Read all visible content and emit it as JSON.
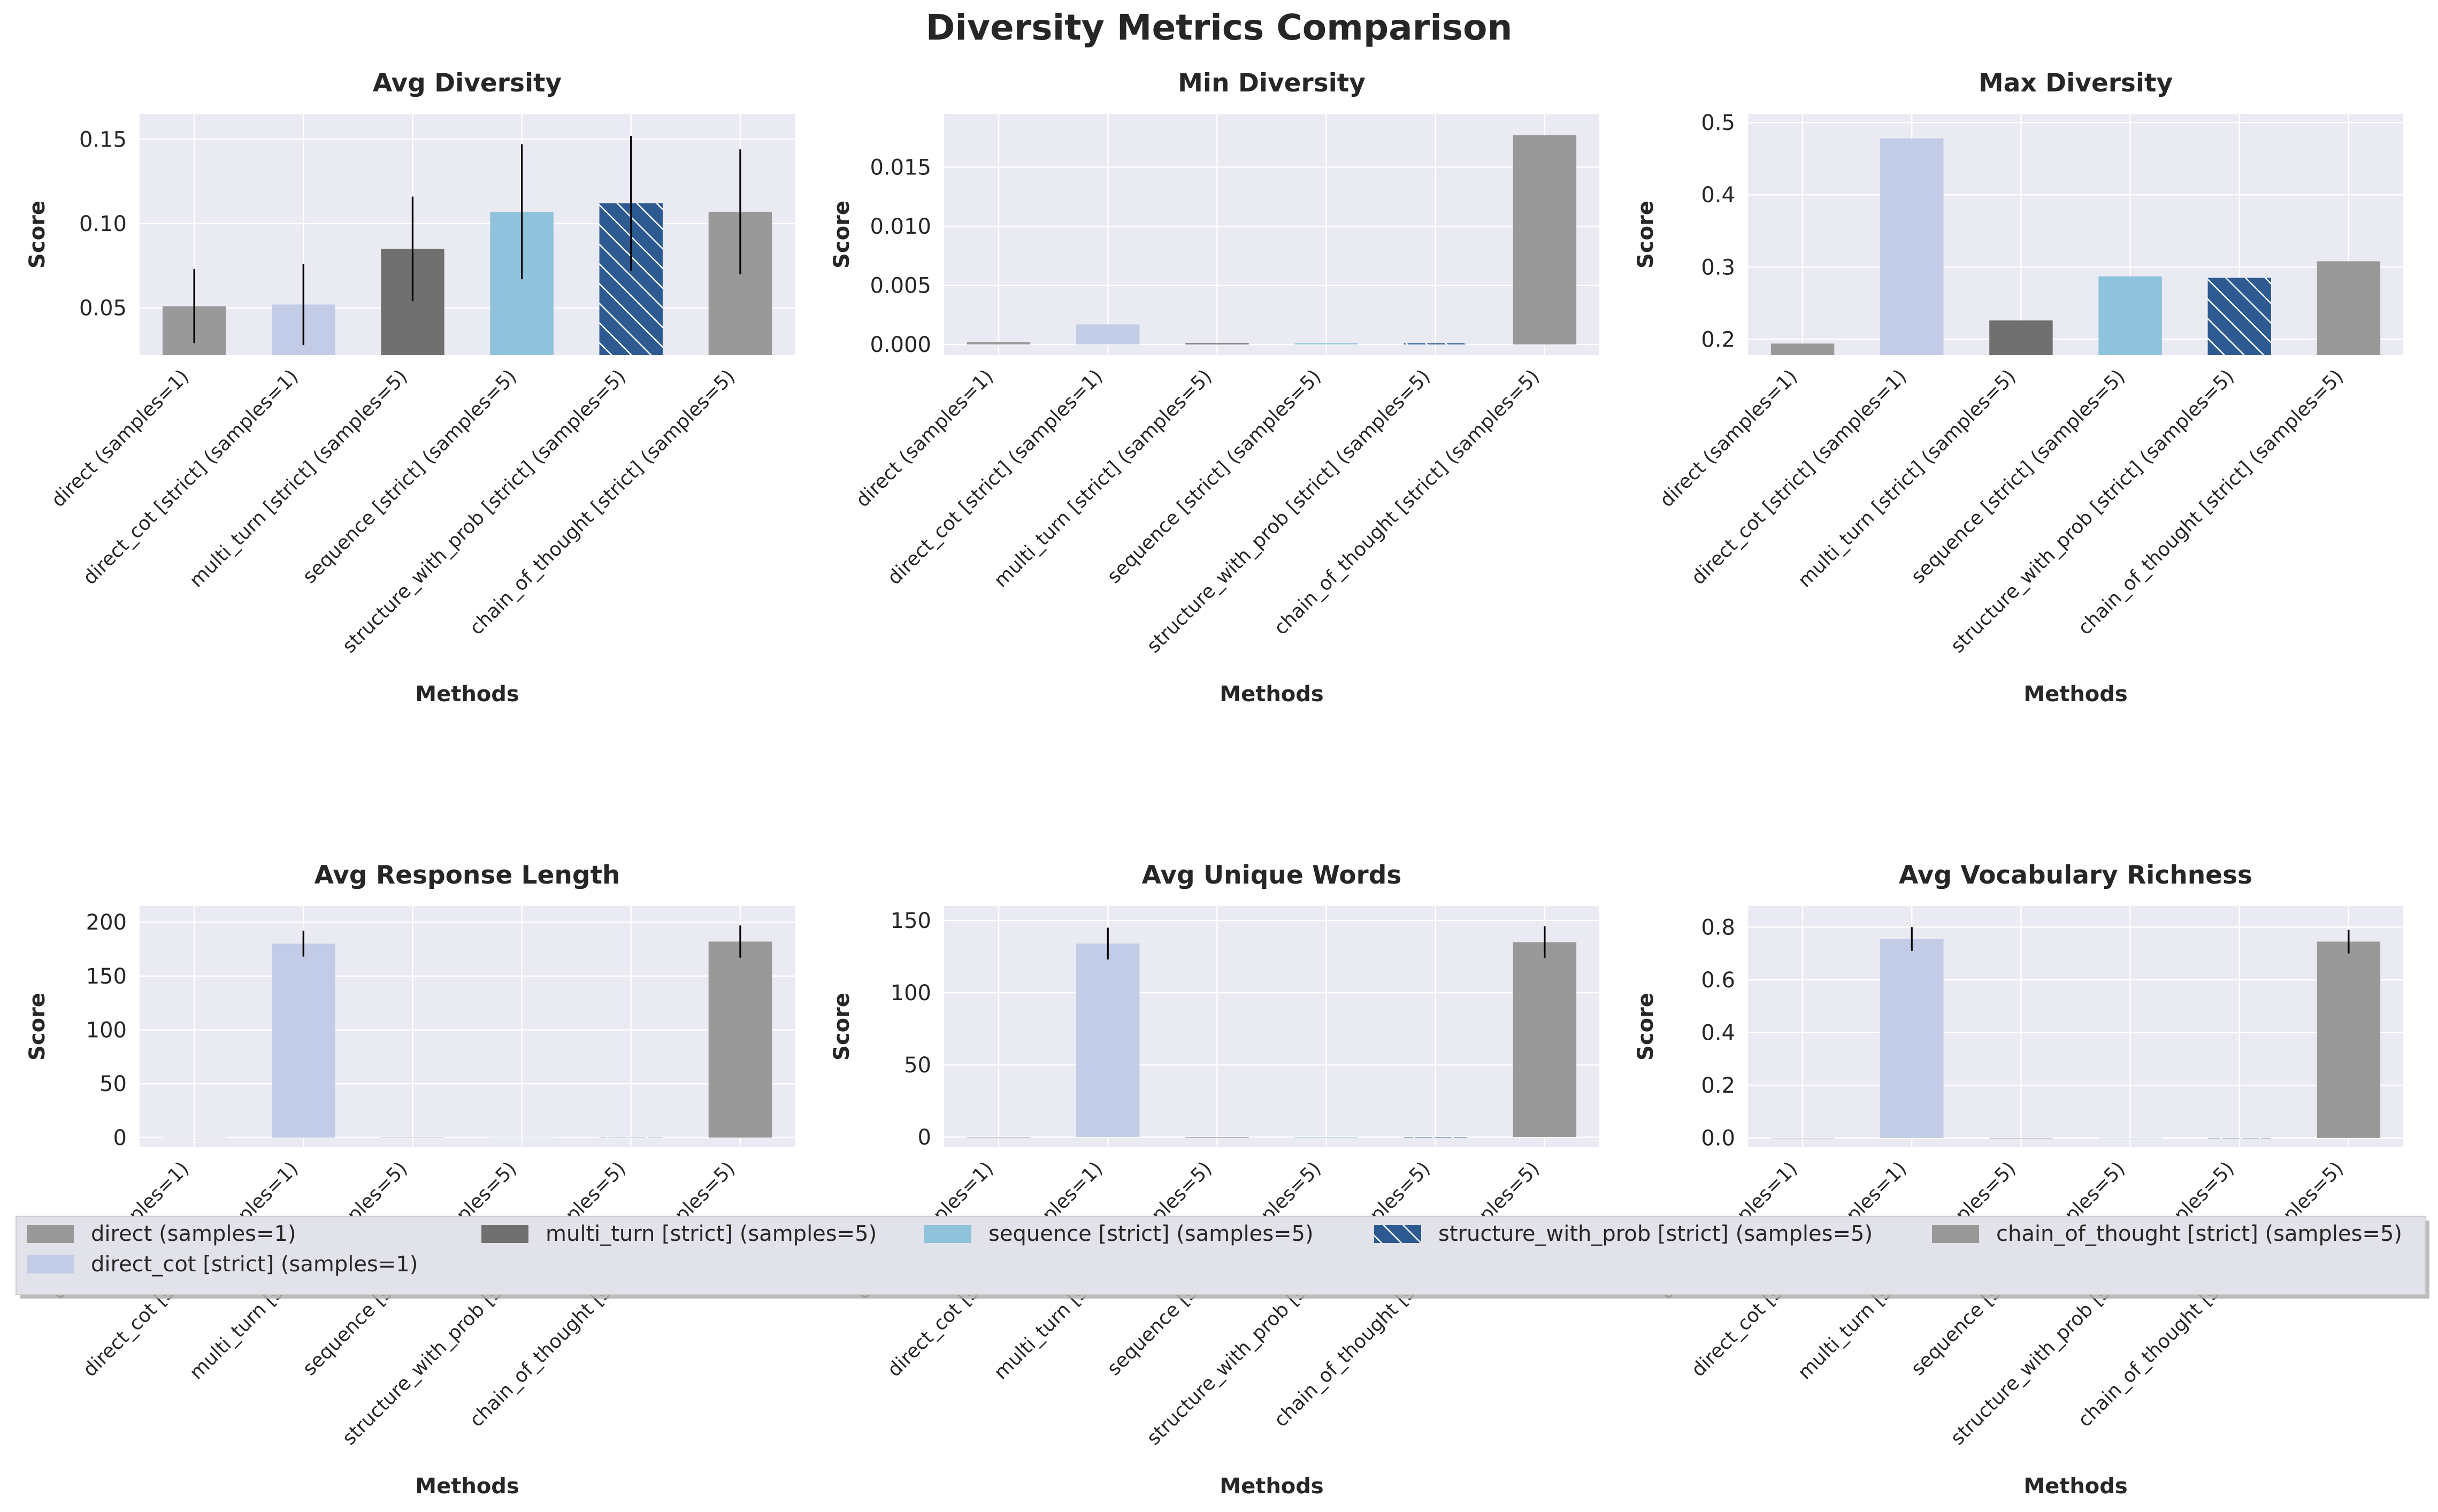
{
  "figure": {
    "title": "Diversity Metrics Comparison"
  },
  "colors": {
    "panel_bg": "#eaeaf2",
    "grid": "#ffffff",
    "text": "#262626",
    "errorbar": "#000000",
    "hatch_line": "#ffffff"
  },
  "methods": [
    {
      "label": "direct (samples=1)",
      "color": "#999999",
      "hatch": false
    },
    {
      "label": "direct_cot [strict] (samples=1)",
      "color": "#c2cce6",
      "hatch": false
    },
    {
      "label": "multi_turn [strict] (samples=5)",
      "color": "#707070",
      "hatch": false
    },
    {
      "label": "sequence [strict] (samples=5)",
      "color": "#8fc2db",
      "hatch": false
    },
    {
      "label": "structure_with_prob [strict] (samples=5)",
      "color": "#2d5a91",
      "hatch": true
    },
    {
      "label": "chain_of_thought [strict] (samples=5)",
      "color": "#999999",
      "hatch": false
    }
  ],
  "legend": {
    "placement": "bottom, spanning figure",
    "columns": 5
  },
  "chart_data": [
    {
      "type": "bar",
      "title": "Avg Diversity",
      "xlabel": "Methods",
      "ylabel": "Score",
      "ylim": [
        0.022,
        0.165
      ],
      "yticks": [
        0.05,
        0.1,
        0.15
      ],
      "ytick_labels": [
        "0.05",
        "0.10",
        "0.15"
      ],
      "categories": [
        "direct (samples=1)",
        "direct_cot [strict] (samples=1)",
        "multi_turn [strict] (samples=5)",
        "sequence [strict] (samples=5)",
        "structure_with_prob [strict] (samples=5)",
        "chain_of_thought [strict] (samples=5)"
      ],
      "values": [
        0.051,
        0.052,
        0.085,
        0.107,
        0.112,
        0.107
      ],
      "errors": [
        0.022,
        0.024,
        0.031,
        0.04,
        0.04,
        0.037
      ],
      "grid": true
    },
    {
      "type": "bar",
      "title": "Min Diversity",
      "xlabel": "Methods",
      "ylabel": "Score",
      "ylim": [
        -0.0009,
        0.0195
      ],
      "yticks": [
        0.0,
        0.005,
        0.01,
        0.015
      ],
      "ytick_labels": [
        "0.000",
        "0.005",
        "0.010",
        "0.015"
      ],
      "categories": [
        "direct (samples=1)",
        "direct_cot [strict] (samples=1)",
        "multi_turn [strict] (samples=5)",
        "sequence [strict] (samples=5)",
        "structure_with_prob [strict] (samples=5)",
        "chain_of_thought [strict] (samples=5)"
      ],
      "values": [
        0.0002,
        0.0017,
        0.0001,
        0.0001,
        0.0001,
        0.0177
      ],
      "errors": [
        0,
        0,
        0,
        0,
        0,
        0
      ],
      "grid": true
    },
    {
      "type": "bar",
      "title": "Max Diversity",
      "xlabel": "Methods",
      "ylabel": "Score",
      "ylim": [
        0.178,
        0.512
      ],
      "yticks": [
        0.2,
        0.3,
        0.4,
        0.5
      ],
      "ytick_labels": [
        "0.2",
        "0.3",
        "0.4",
        "0.5"
      ],
      "categories": [
        "direct (samples=1)",
        "direct_cot [strict] (samples=1)",
        "multi_turn [strict] (samples=5)",
        "sequence [strict] (samples=5)",
        "structure_with_prob [strict] (samples=5)",
        "chain_of_thought [strict] (samples=5)"
      ],
      "values": [
        0.194,
        0.478,
        0.226,
        0.287,
        0.285,
        0.308
      ],
      "errors": [
        0,
        0,
        0,
        0,
        0,
        0
      ],
      "grid": true
    },
    {
      "type": "bar",
      "title": "Avg Response Length",
      "xlabel": "Methods",
      "ylabel": "Score",
      "ylim": [
        -9,
        215
      ],
      "yticks": [
        0,
        50,
        100,
        150,
        200
      ],
      "ytick_labels": [
        "0",
        "50",
        "100",
        "150",
        "200"
      ],
      "categories": [
        "direct (samples=1)",
        "direct_cot [strict] (samples=1)",
        "multi_turn [strict] (samples=5)",
        "sequence [strict] (samples=5)",
        "structure_with_prob [strict] (samples=5)",
        "chain_of_thought [strict] (samples=5)"
      ],
      "values": [
        0,
        180,
        0,
        0,
        0,
        182
      ],
      "errors": [
        0,
        12,
        0,
        0,
        0,
        15
      ],
      "grid": true
    },
    {
      "type": "bar",
      "title": "Avg Unique Words",
      "xlabel": "Methods",
      "ylabel": "Score",
      "ylim": [
        -7,
        160
      ],
      "yticks": [
        0,
        50,
        100,
        150
      ],
      "ytick_labels": [
        "0",
        "50",
        "100",
        "150"
      ],
      "categories": [
        "direct (samples=1)",
        "direct_cot [strict] (samples=1)",
        "multi_turn [strict] (samples=5)",
        "sequence [strict] (samples=5)",
        "structure_with_prob [strict] (samples=5)",
        "chain_of_thought [strict] (samples=5)"
      ],
      "values": [
        0,
        134,
        0,
        0,
        0,
        135
      ],
      "errors": [
        0,
        11,
        0,
        0,
        0,
        11
      ],
      "grid": true
    },
    {
      "type": "bar",
      "title": "Avg Vocabulary Richness",
      "xlabel": "Methods",
      "ylabel": "Score",
      "ylim": [
        -0.035,
        0.88
      ],
      "yticks": [
        0.0,
        0.2,
        0.4,
        0.6,
        0.8
      ],
      "ytick_labels": [
        "0.0",
        "0.2",
        "0.4",
        "0.6",
        "0.8"
      ],
      "categories": [
        "direct (samples=1)",
        "direct_cot [strict] (samples=1)",
        "multi_turn [strict] (samples=5)",
        "sequence [strict] (samples=5)",
        "structure_with_prob [strict] (samples=5)",
        "chain_of_thought [strict] (samples=5)"
      ],
      "values": [
        0,
        0.755,
        0,
        0,
        0,
        0.745
      ],
      "errors": [
        0,
        0.045,
        0,
        0,
        0,
        0.045
      ],
      "grid": true
    }
  ]
}
